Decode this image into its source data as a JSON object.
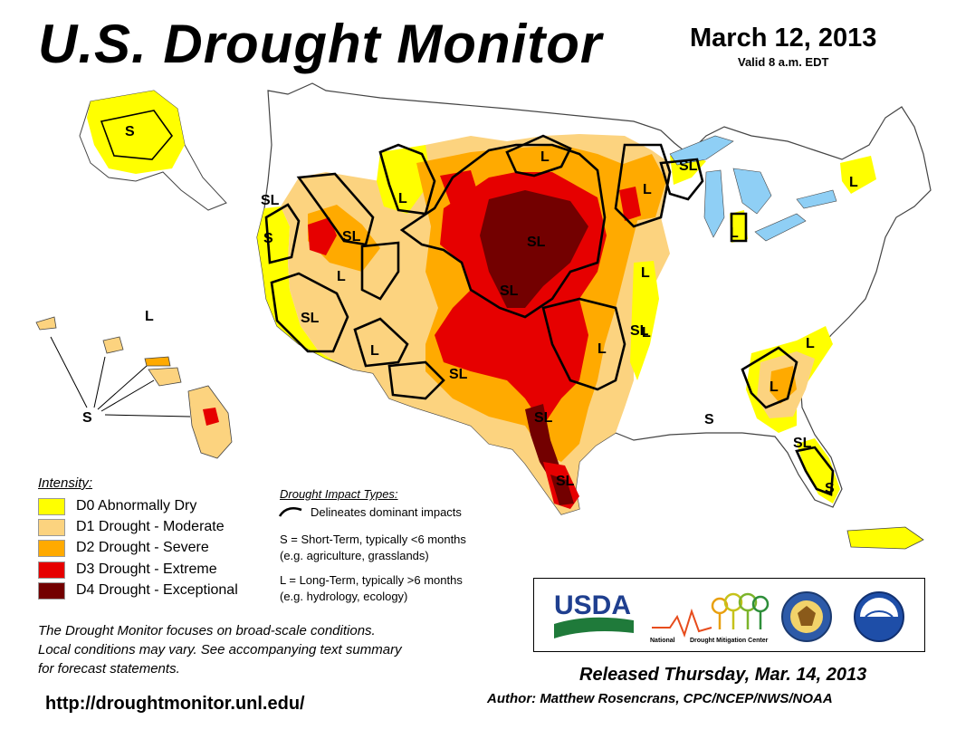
{
  "header": {
    "title": "U.S. Drought Monitor",
    "date": "March 12, 2013",
    "valid": "Valid 8 a.m. EDT"
  },
  "colors": {
    "D0": "#ffff00",
    "D1": "#fcd37f",
    "D2": "#ffaa00",
    "D3": "#e60000",
    "D4": "#730000",
    "water": "#8fcff5"
  },
  "legend": {
    "title": "Intensity:",
    "items": [
      {
        "code": "D0",
        "label": "D0 Abnormally Dry"
      },
      {
        "code": "D1",
        "label": "D1 Drought - Moderate"
      },
      {
        "code": "D2",
        "label": "D2 Drought - Severe"
      },
      {
        "code": "D3",
        "label": "D3 Drought - Extreme"
      },
      {
        "code": "D4",
        "label": "D4 Drought - Exceptional"
      }
    ]
  },
  "impacts": {
    "title": "Drought Impact Types:",
    "line_desc": "Delineates dominant impacts",
    "short_term": "S = Short-Term, typically <6 months",
    "short_term_eg": "(e.g. agriculture, grasslands)",
    "long_term": "L = Long-Term, typically >6 months",
    "long_term_eg": "(e.g. hydrology, ecology)"
  },
  "map_labels": [
    "S",
    "SL",
    "S",
    "SL",
    "L",
    "SL",
    "L",
    "L",
    "SL",
    "SL",
    "L",
    "L",
    "L",
    "SL",
    "SL",
    "SL",
    "L",
    "SL",
    "L",
    "S",
    "L",
    "L",
    "L",
    "SL",
    "S",
    "S",
    "L",
    "SL",
    "L"
  ],
  "note": {
    "line1": "The Drought Monitor focuses on broad-scale conditions.",
    "line2": "Local conditions may vary. See accompanying text summary",
    "line3": "for forecast statements."
  },
  "url": "http://droughtmonitor.unl.edu/",
  "logos": {
    "usda": "USDA",
    "ndmc_prefix": "National",
    "ndmc_name": "Drought Mitigation Center"
  },
  "footer": {
    "released": "Released Thursday, Mar. 14, 2013",
    "author": "Author: Matthew Rosencrans, CPC/NCEP/NWS/NOAA"
  }
}
